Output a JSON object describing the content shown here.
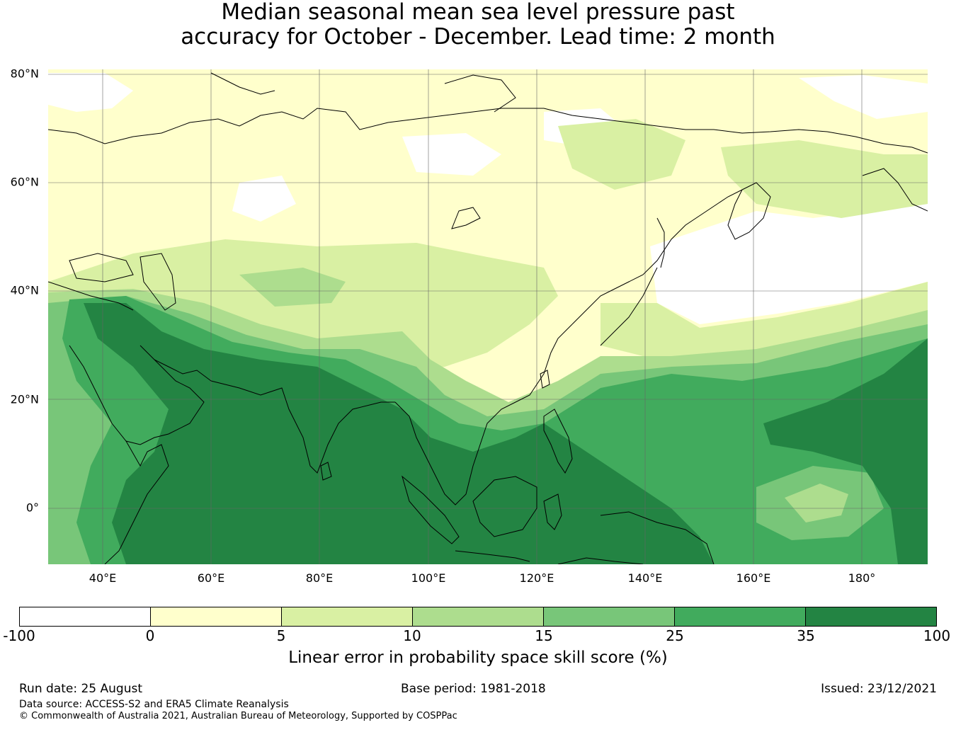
{
  "title_line1": "Median seasonal mean sea level pressure past",
  "title_line2": "accuracy for October - December. Lead time: 2 month",
  "map": {
    "lat_labels": [
      "80°N",
      "60°N",
      "40°N",
      "20°N",
      "0°"
    ],
    "lon_labels": [
      "40°E",
      "60°E",
      "80°E",
      "100°E",
      "120°E",
      "140°E",
      "160°E",
      "180°"
    ],
    "extent": {
      "lon_min": 30,
      "lon_max": 192,
      "lat_min": -10,
      "lat_max": 81
    },
    "coastline_color": "#000000",
    "gridline_color": "#666666"
  },
  "colorbar": {
    "label": "Linear error in probability space skill score (%)",
    "ticks": [
      "-100",
      "0",
      "5",
      "10",
      "15",
      "25",
      "35",
      "100"
    ],
    "colors": [
      "#ffffff",
      "#ffffcc",
      "#d9f0a3",
      "#addd8e",
      "#78c679",
      "#41ab5d",
      "#238443"
    ]
  },
  "footer": {
    "run_date": "Run date: 25 August",
    "base_period": "Base period: 1981-2018",
    "issued": "Issued: 23/12/2021",
    "data_source": "Data source: ACCESS-S2 and ERA5 Climate Reanalysis",
    "copyright": "© Commonwealth of Australia 2021, Australian Bureau of Meteorology, Supported by COSPPac"
  }
}
